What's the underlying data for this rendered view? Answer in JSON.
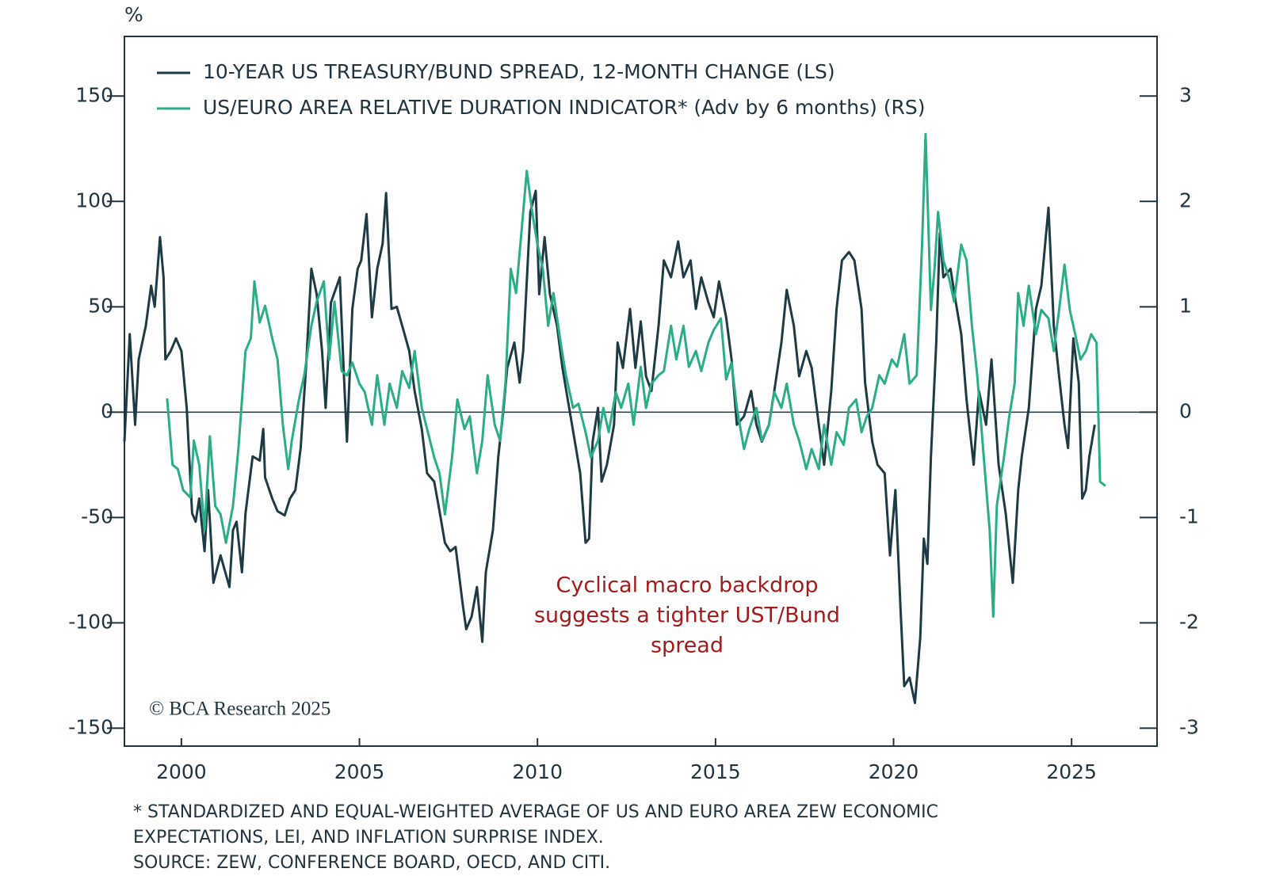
{
  "chart_data": {
    "type": "line",
    "y_unit": "%",
    "annotation": [
      "Cyclical macro backdrop",
      "suggests a tighter UST/Bund",
      "spread"
    ],
    "copyright": "© BCA Research 2025",
    "footnotes": [
      "* STANDARDIZED AND EQUAL-WEIGHTED AVERAGE OF US AND EURO AREA ZEW ECONOMIC",
      "EXPECTATIONS, LEI, AND INFLATION SURPRISE INDEX.",
      "SOURCE: ZEW, CONFERENCE BOARD, OECD, AND CITI."
    ],
    "legend": "upper left",
    "xlim": [
      1998.4,
      2027.4
    ],
    "xticks": [
      2000,
      2005,
      2010,
      2015,
      2020,
      2025
    ],
    "ylim": [
      -158.5,
      178.3
    ],
    "yticks": [
      150,
      100,
      50,
      0,
      -50,
      -100,
      -150
    ],
    "y2lim": [
      -3.17,
      3.566
    ],
    "y2ticks": [
      3,
      2,
      1,
      0,
      -1,
      -2,
      -3
    ],
    "series": [
      {
        "name": "10-YEAR US TREASURY/BUND SPREAD, 12-MONTH CHANGE (LS)",
        "color": "#1d3a45",
        "axis": "y",
        "x": [
          1998.4,
          1998.55,
          1998.7,
          1998.8,
          1999.0,
          1999.15,
          1999.25,
          1999.4,
          1999.5,
          1999.55,
          1999.7,
          1999.85,
          2000.0,
          2000.15,
          2000.3,
          2000.4,
          2000.5,
          2000.65,
          2000.75,
          2000.9,
          2001.1,
          2001.35,
          2001.45,
          2001.55,
          2001.7,
          2001.8,
          2002.0,
          2002.2,
          2002.3,
          2002.35,
          2002.55,
          2002.7,
          2002.9,
          2003.05,
          2003.2,
          2003.35,
          2003.5,
          2003.65,
          2003.8,
          2003.95,
          2004.05,
          2004.2,
          2004.45,
          2004.55,
          2004.65,
          2004.8,
          2004.95,
          2005.05,
          2005.2,
          2005.35,
          2005.5,
          2005.65,
          2005.75,
          2005.9,
          2006.05,
          2006.2,
          2006.4,
          2006.55,
          2006.75,
          2006.9,
          2007.1,
          2007.25,
          2007.4,
          2007.55,
          2007.7,
          2007.9,
          2008.0,
          2008.15,
          2008.3,
          2008.45,
          2008.55,
          2008.75,
          2008.9,
          2009.05,
          2009.15,
          2009.35,
          2009.5,
          2009.6,
          2009.8,
          2009.95,
          2010.05,
          2010.2,
          2010.35,
          2010.55,
          2010.7,
          2010.85,
          2011.05,
          2011.2,
          2011.35,
          2011.45,
          2011.55,
          2011.7,
          2011.8,
          2011.95,
          2012.15,
          2012.25,
          2012.4,
          2012.6,
          2012.75,
          2012.9,
          2013.05,
          2013.2,
          2013.4,
          2013.55,
          2013.75,
          2013.95,
          2014.1,
          2014.3,
          2014.45,
          2014.6,
          2014.8,
          2014.95,
          2015.1,
          2015.3,
          2015.45,
          2015.6,
          2015.8,
          2016.0,
          2016.15,
          2016.3,
          2016.5,
          2016.65,
          2016.85,
          2017.0,
          2017.2,
          2017.35,
          2017.55,
          2017.7,
          2017.9,
          2018.05,
          2018.25,
          2018.4,
          2018.55,
          2018.75,
          2018.9,
          2019.1,
          2019.2,
          2019.4,
          2019.55,
          2019.75,
          2019.9,
          2020.05,
          2020.2,
          2020.3,
          2020.45,
          2020.6,
          2020.75,
          2020.85,
          2020.95,
          2021.05,
          2021.2,
          2021.3,
          2021.4,
          2021.6,
          2021.75,
          2021.9,
          2022.05,
          2022.25,
          2022.4,
          2022.6,
          2022.75,
          2022.95,
          2023.15,
          2023.35,
          2023.5,
          2023.6,
          2023.8,
          2024.0,
          2024.15,
          2024.35,
          2024.5,
          2024.65,
          2024.8,
          2024.9,
          2025.05,
          2025.2,
          2025.3,
          2025.4,
          2025.5,
          2025.65
        ],
        "values": [
          -14,
          37,
          -6,
          25,
          41,
          60,
          50,
          83,
          64,
          25,
          29,
          35,
          29,
          2,
          -48,
          -52,
          -41,
          -66,
          -37,
          -81,
          -68,
          -83,
          -56,
          -52,
          -76,
          -48,
          -21,
          -23,
          -8,
          -31,
          -41,
          -47,
          -49,
          -41,
          -37,
          -17,
          21,
          68,
          56,
          29,
          2,
          52,
          64,
          23,
          -14,
          49,
          68,
          72,
          94,
          45,
          68,
          80,
          104,
          49,
          50,
          41,
          29,
          10,
          -8,
          -29,
          -33,
          -47,
          -62,
          -66,
          -64,
          -91,
          -103,
          -97,
          -83,
          -109,
          -76,
          -56,
          -21,
          2,
          21,
          33,
          14,
          29,
          95,
          105,
          56,
          83,
          56,
          41,
          21,
          6,
          -14,
          -29,
          -62,
          -60,
          -14,
          2,
          -33,
          -25,
          -6,
          33,
          21,
          49,
          21,
          43,
          17,
          10,
          41,
          72,
          64,
          81,
          64,
          72,
          49,
          64,
          52,
          45,
          62,
          45,
          25,
          -6,
          -2,
          10,
          -6,
          -14,
          -6,
          10,
          33,
          58,
          41,
          17,
          29,
          21,
          -6,
          -25,
          10,
          49,
          72,
          76,
          72,
          49,
          14,
          -14,
          -25,
          -29,
          -68,
          -37,
          -95,
          -130,
          -126,
          -138,
          -107,
          -60,
          -72,
          -21,
          33,
          85,
          64,
          68,
          52,
          37,
          6,
          -25,
          10,
          -6,
          25,
          -25,
          -48,
          -81,
          -37,
          -21,
          2,
          49,
          60,
          97,
          41,
          17,
          -6,
          -17,
          35,
          14,
          -41,
          -37,
          -21,
          -6
        ]
      },
      {
        "name": "US/EURO AREA RELATIVE DURATION INDICATOR* (Adv by 6 months) (RS)",
        "color": "#2bae87",
        "axis": "y2",
        "x": [
          1999.6,
          1999.75,
          1999.9,
          2000.05,
          2000.25,
          2000.35,
          2000.5,
          2000.65,
          2000.8,
          2000.95,
          2001.1,
          2001.25,
          2001.45,
          2001.6,
          2001.8,
          2001.95,
          2002.05,
          2002.2,
          2002.35,
          2002.55,
          2002.7,
          2002.85,
          2003.0,
          2003.1,
          2003.3,
          2003.45,
          2003.65,
          2003.8,
          2004.0,
          2004.15,
          2004.3,
          2004.5,
          2004.65,
          2004.8,
          2005.0,
          2005.15,
          2005.35,
          2005.5,
          2005.7,
          2005.85,
          2006.05,
          2006.2,
          2006.4,
          2006.55,
          2006.75,
          2006.9,
          2007.1,
          2007.25,
          2007.4,
          2007.6,
          2007.75,
          2007.95,
          2008.1,
          2008.3,
          2008.45,
          2008.6,
          2008.8,
          2008.95,
          2009.1,
          2009.25,
          2009.4,
          2009.6,
          2009.7,
          2009.85,
          2010.0,
          2010.15,
          2010.3,
          2010.45,
          2010.65,
          2010.8,
          2011.0,
          2011.15,
          2011.35,
          2011.5,
          2011.7,
          2011.85,
          2012.0,
          2012.2,
          2012.35,
          2012.55,
          2012.7,
          2012.9,
          2013.05,
          2013.2,
          2013.4,
          2013.55,
          2013.75,
          2013.9,
          2014.1,
          2014.25,
          2014.45,
          2014.6,
          2014.8,
          2014.95,
          2015.15,
          2015.3,
          2015.45,
          2015.6,
          2015.8,
          2015.95,
          2016.15,
          2016.3,
          2016.5,
          2016.65,
          2016.85,
          2017.0,
          2017.2,
          2017.35,
          2017.55,
          2017.7,
          2017.9,
          2018.05,
          2018.25,
          2018.4,
          2018.6,
          2018.75,
          2018.95,
          2019.1,
          2019.25,
          2019.4,
          2019.6,
          2019.75,
          2019.95,
          2020.1,
          2020.3,
          2020.45,
          2020.65,
          2020.8,
          2020.9,
          2021.05,
          2021.15,
          2021.25,
          2021.4,
          2021.55,
          2021.7,
          2021.9,
          2022.05,
          2022.2,
          2022.35,
          2022.55,
          2022.7,
          2022.8,
          2022.9,
          2023.1,
          2023.25,
          2023.4,
          2023.5,
          2023.65,
          2023.8,
          2024.0,
          2024.15,
          2024.35,
          2024.5,
          2024.65,
          2024.8,
          2024.95,
          2025.1,
          2025.25,
          2025.4,
          2025.55,
          2025.7,
          2025.8,
          2025.95
        ],
        "values": [
          0.13,
          -0.5,
          -0.54,
          -0.74,
          -0.81,
          -0.27,
          -0.5,
          -1.12,
          -0.23,
          -0.89,
          -0.97,
          -1.24,
          -0.89,
          -0.35,
          0.58,
          0.7,
          1.24,
          0.85,
          1.01,
          0.7,
          0.5,
          -0.12,
          -0.54,
          -0.27,
          0.12,
          0.35,
          0.82,
          1.05,
          1.24,
          0.5,
          1.05,
          0.39,
          0.35,
          0.47,
          0.27,
          0.19,
          -0.12,
          0.35,
          -0.12,
          0.27,
          0.04,
          0.39,
          0.23,
          0.58,
          0.04,
          -0.16,
          -0.43,
          -0.58,
          -0.97,
          -0.43,
          0.12,
          -0.16,
          -0.04,
          -0.58,
          -0.27,
          0.35,
          -0.12,
          -0.27,
          0.27,
          1.36,
          1.13,
          1.9,
          2.29,
          1.9,
          1.59,
          1.36,
          0.82,
          1.13,
          0.66,
          0.35,
          0.04,
          0.08,
          -0.19,
          -0.43,
          -0.27,
          0.04,
          -0.19,
          0.19,
          0.04,
          0.27,
          -0.12,
          0.43,
          0.04,
          0.27,
          0.35,
          0.39,
          0.82,
          0.5,
          0.82,
          0.43,
          0.58,
          0.39,
          0.66,
          0.78,
          0.89,
          0.31,
          0.47,
          0.04,
          -0.35,
          -0.16,
          0.04,
          -0.27,
          -0.12,
          0.19,
          0.04,
          0.27,
          -0.12,
          -0.27,
          -0.54,
          -0.35,
          -0.54,
          -0.12,
          -0.5,
          -0.19,
          -0.31,
          0.04,
          0.12,
          -0.19,
          -0.04,
          0.04,
          0.35,
          0.27,
          0.5,
          0.43,
          0.74,
          0.27,
          0.35,
          1.59,
          2.64,
          0.97,
          1.36,
          1.9,
          1.44,
          1.28,
          1.05,
          1.59,
          1.44,
          0.82,
          0.35,
          -0.5,
          -1.12,
          -1.94,
          -0.89,
          -0.43,
          -0.04,
          0.27,
          1.13,
          0.82,
          1.2,
          0.74,
          0.97,
          0.89,
          0.58,
          0.97,
          1.4,
          0.97,
          0.74,
          0.5,
          0.58,
          0.74,
          0.66,
          -0.66,
          -0.7
        ]
      }
    ]
  }
}
